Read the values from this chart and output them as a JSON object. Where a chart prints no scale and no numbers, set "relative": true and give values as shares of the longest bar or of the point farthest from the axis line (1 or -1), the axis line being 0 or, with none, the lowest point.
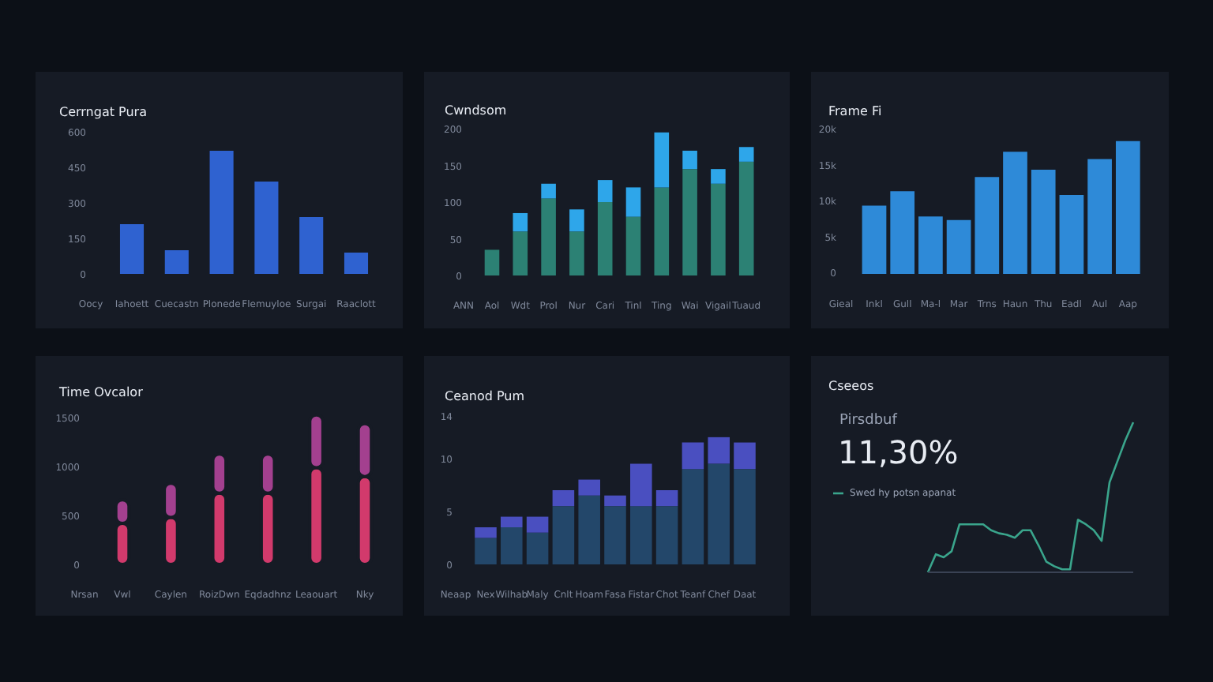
{
  "chart_data": [
    {
      "type": "bar",
      "title": "Cerrngat Pura",
      "xlabel": "Oocy",
      "categories": [
        "Iahoett",
        "Cuecastn",
        "Plonede",
        "Flemuyloe",
        "Surgai",
        "Raaclott"
      ],
      "values": [
        210,
        100,
        520,
        390,
        240,
        90
      ],
      "color": "#2f62d0",
      "ylim": [
        0,
        600
      ],
      "yticks": [
        0,
        150,
        300,
        450,
        600
      ]
    },
    {
      "type": "bar",
      "title": "Cwndsom",
      "xlabel": "ANN",
      "categories": [
        "Aol",
        "Wdt",
        "Prol",
        "Nur",
        "Cari",
        "Tinl",
        "Ting",
        "Wai",
        "Vigail",
        "Tuaud"
      ],
      "stacked": true,
      "series": [
        {
          "color": "#2c8174",
          "values": [
            35,
            60,
            105,
            60,
            100,
            80,
            120,
            145,
            125,
            155
          ]
        },
        {
          "color": "#2ea6ea",
          "values": [
            null,
            25,
            20,
            30,
            30,
            40,
            75,
            25,
            20,
            20
          ]
        }
      ],
      "ylim": [
        0,
        200
      ],
      "yticks": [
        0,
        50,
        100,
        150,
        200
      ]
    },
    {
      "type": "bar",
      "title": "Frame Fi",
      "xlabel": "Gieal",
      "categories": [
        "Inkl",
        "Gull",
        "Ma-l",
        "Mar",
        "Trns",
        "Haun",
        "Thu",
        "Eadl",
        "Aul",
        "Aap"
      ],
      "values": [
        9.5,
        11.5,
        8,
        7.5,
        13.5,
        17,
        14.5,
        11,
        16,
        18.5
      ],
      "color": "#2e8ad8",
      "ylim": [
        0,
        20
      ],
      "yticks": [
        0,
        {
          "value": 5,
          "label": "5k"
        },
        {
          "value": 10,
          "label": "10k"
        },
        {
          "value": 15,
          "label": "15k"
        },
        {
          "value": 20,
          "label": "20k"
        }
      ]
    },
    {
      "type": "bar",
      "title": "Time Ovcalor",
      "xlabel": "Nrsan",
      "categories": [
        "Vwl",
        "Caylen",
        "RoizDwn",
        "Eqdadhnz",
        "Leaouart",
        "Nky"
      ],
      "stacked": true,
      "series": [
        {
          "color": "#d23a6c",
          "values": [
            420,
            480,
            730,
            730,
            990,
            900
          ]
        },
        {
          "color": "#a3408f",
          "values": [
            240,
            350,
            400,
            400,
            540,
            540
          ]
        }
      ],
      "ylim": [
        0,
        1600
      ],
      "yticks": [
        0,
        500,
        1000,
        1500
      ]
    },
    {
      "type": "bar",
      "title": "Ceanod Pum",
      "xlabel": "Neaap",
      "categories": [
        "Nex",
        "Wilhab",
        "Maly",
        "Cnlt",
        "Hoam",
        "Fasa",
        "Fistar",
        "Chot",
        "Teanf",
        "Chef",
        "Daat"
      ],
      "stacked": true,
      "series": [
        {
          "color": "#23476a",
          "values": [
            2.5,
            3.5,
            3,
            5.5,
            6.5,
            5.5,
            5.5,
            5.5,
            9,
            9.5,
            9
          ]
        },
        {
          "color": "#4a4fc0",
          "values": [
            1,
            1,
            1.5,
            1.5,
            1.5,
            1,
            4,
            1.5,
            2.5,
            2.5,
            2.5
          ]
        }
      ],
      "ylim": [
        0,
        14
      ],
      "yticks": [
        0,
        5,
        10,
        14
      ]
    },
    {
      "type": "line",
      "title": "Cseeos",
      "subtitle": "Pirsdbuf",
      "annotations": [
        "11,30%"
      ],
      "relative": true,
      "legend": "left",
      "categories": [
        null,
        null,
        null,
        null,
        null,
        null,
        null,
        null,
        null,
        null,
        null,
        null,
        null,
        null,
        null,
        null,
        null,
        null,
        null,
        null,
        null,
        null,
        null,
        null,
        null,
        null,
        null
      ],
      "series": [
        {
          "name": "Swed hy potsn apanat",
          "color": "#3aa58c",
          "values": [
            0,
            0.12,
            0.1,
            0.14,
            0.32,
            0.32,
            0.32,
            0.32,
            0.28,
            0.26,
            0.25,
            0.23,
            0.28,
            0.28,
            0.18,
            0.07,
            0.04,
            0.02,
            0.02,
            0.35,
            0.32,
            0.28,
            0.21,
            0.6,
            0.74,
            0.88,
            1
          ]
        }
      ]
    }
  ]
}
